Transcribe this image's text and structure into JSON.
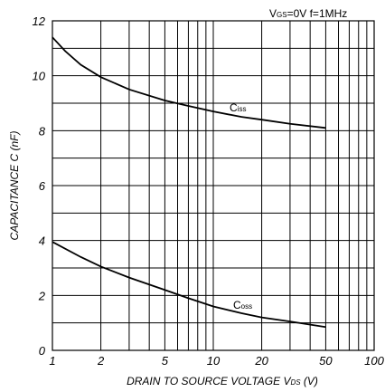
{
  "chart_data": {
    "type": "line",
    "title": "",
    "xlabel": {
      "main": "DRAIN TO SOURCE VOLTAGE  V",
      "sub": "DS",
      "unit": " (V)"
    },
    "ylabel": "CAPACITANCE  C (nF)",
    "x_scale": "log",
    "xlim": [
      1,
      100
    ],
    "ylim": [
      0,
      12
    ],
    "x_ticks": [
      1,
      2,
      5,
      10,
      20,
      50,
      100
    ],
    "x_tick_labels": [
      "1",
      "2",
      "5",
      "10",
      "20",
      "50",
      "100"
    ],
    "y_ticks": [
      0,
      2,
      4,
      6,
      8,
      10,
      12
    ],
    "y_tick_labels": [
      "0",
      "2",
      "4",
      "6",
      "8",
      "10",
      "12"
    ],
    "grid": true,
    "conditions": {
      "main": "V",
      "sub": "GS",
      "rest": "=0V   f=1MHz"
    },
    "series": [
      {
        "name": {
          "main": "C",
          "sub": "iss"
        },
        "x": [
          1,
          1.2,
          1.5,
          2,
          3,
          5,
          7,
          10,
          15,
          20,
          30,
          50
        ],
        "y": [
          11.4,
          10.9,
          10.4,
          9.95,
          9.5,
          9.1,
          8.9,
          8.7,
          8.5,
          8.4,
          8.25,
          8.1
        ]
      },
      {
        "name": {
          "main": "C",
          "sub": "oss"
        },
        "x": [
          1,
          1.5,
          2,
          3,
          5,
          7,
          10,
          15,
          20,
          30,
          50
        ],
        "y": [
          3.95,
          3.4,
          3.05,
          2.65,
          2.2,
          1.9,
          1.6,
          1.35,
          1.2,
          1.05,
          0.85
        ]
      }
    ]
  }
}
